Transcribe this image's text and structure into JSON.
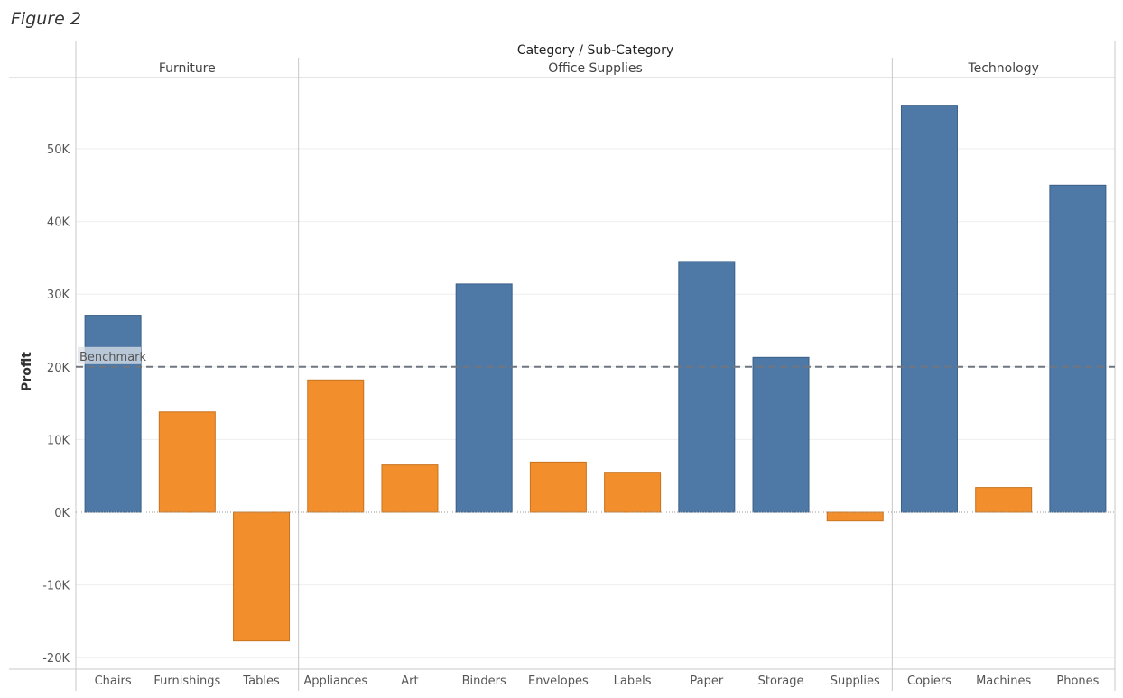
{
  "figure_label": "Figure 2",
  "chart_data": {
    "type": "bar",
    "title": "Category / Sub-Category",
    "xlabel": "Category / Sub-Category",
    "ylabel": "Profit",
    "ylim": [
      -22000,
      60000
    ],
    "yticks": [
      -20000,
      -10000,
      0,
      10000,
      20000,
      30000,
      40000,
      50000
    ],
    "ytick_labels": [
      "-20K",
      "-10K",
      "0K",
      "10K",
      "20K",
      "30K",
      "40K",
      "50K"
    ],
    "benchmark": {
      "label": "Benchmark",
      "value": 20000
    },
    "groups": [
      {
        "name": "Furniture",
        "categories": [
          "Chairs",
          "Furnishings",
          "Tables"
        ]
      },
      {
        "name": "Office Supplies",
        "categories": [
          "Appliances",
          "Art",
          "Binders",
          "Envelopes",
          "Labels",
          "Paper",
          "Storage",
          "Supplies"
        ]
      },
      {
        "name": "Technology",
        "categories": [
          "Copiers",
          "Machines",
          "Phones"
        ]
      }
    ],
    "categories": [
      "Chairs",
      "Furnishings",
      "Tables",
      "Appliances",
      "Art",
      "Binders",
      "Envelopes",
      "Labels",
      "Paper",
      "Storage",
      "Supplies",
      "Copiers",
      "Machines",
      "Phones"
    ],
    "values": [
      27100,
      13800,
      -17700,
      18200,
      6500,
      31400,
      6900,
      5500,
      34500,
      21300,
      -1200,
      56000,
      3400,
      45000
    ],
    "colors": {
      "above": "#4e79a7",
      "below": "#f28e2b",
      "above_border": "#3a5f88",
      "below_border": "#c87420"
    }
  }
}
